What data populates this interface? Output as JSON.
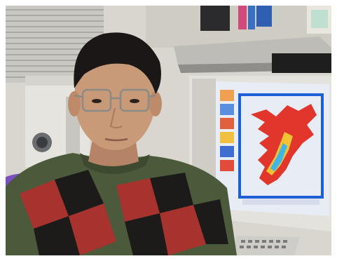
{
  "photo": {
    "subject": "portrait",
    "colors": {
      "background_wall": "#d9d6cf",
      "blinds": "#b9b8b2",
      "sweater_green": "#4a5a3a",
      "sweater_red": "#a8332e",
      "sweater_black": "#1d1b1a",
      "skin": "#c99a78",
      "hair": "#1a1716",
      "monitor_frame": "#e4e2dc",
      "screen_bg": "#e7ecf5",
      "map_blue": "#1c5fd6",
      "map_red": "#e2352b",
      "map_yellow": "#f1c232"
    },
    "screen_caption": "",
    "screen_small_text": ""
  }
}
